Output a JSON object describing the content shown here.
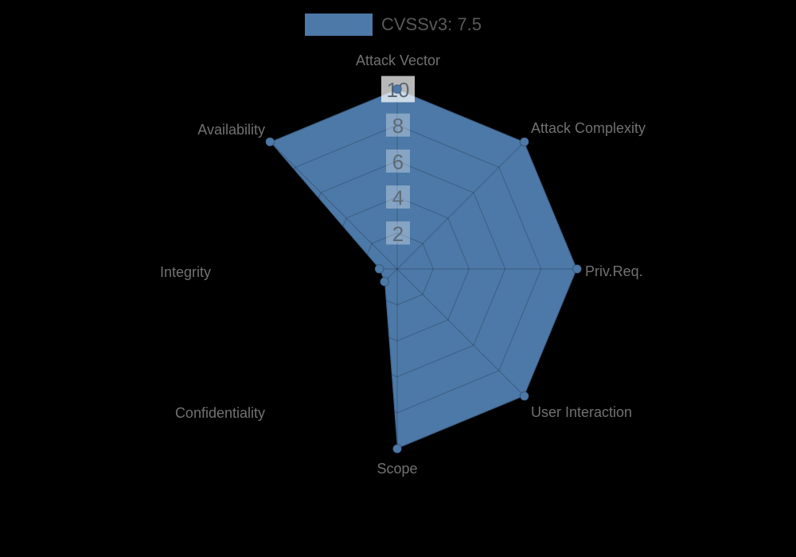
{
  "legend": {
    "label": "CVSSv3: 7.5",
    "swatch_color": "#4d79a8"
  },
  "chart_data": {
    "type": "radar",
    "title": "CVSSv3: 7.5",
    "categories": [
      "Attack Vector",
      "Attack Complexity",
      "Priv.Req.",
      "User Interaction",
      "Scope",
      "Confidentiality",
      "Integrity",
      "Availability"
    ],
    "series": [
      {
        "name": "CVSSv3: 7.5",
        "values": [
          10,
          10,
          10,
          10,
          10,
          1,
          1,
          10
        ]
      }
    ],
    "ticks": [
      2,
      4,
      6,
      8,
      10
    ],
    "rmax": 10,
    "grid": true,
    "legend_position": "top",
    "fill_color": "#4d79a8",
    "background_color": "#000000",
    "axis_label_color": "#717171",
    "tick_label_color": "#5d6a77",
    "tick_backdrop_color": "#ffffff"
  }
}
